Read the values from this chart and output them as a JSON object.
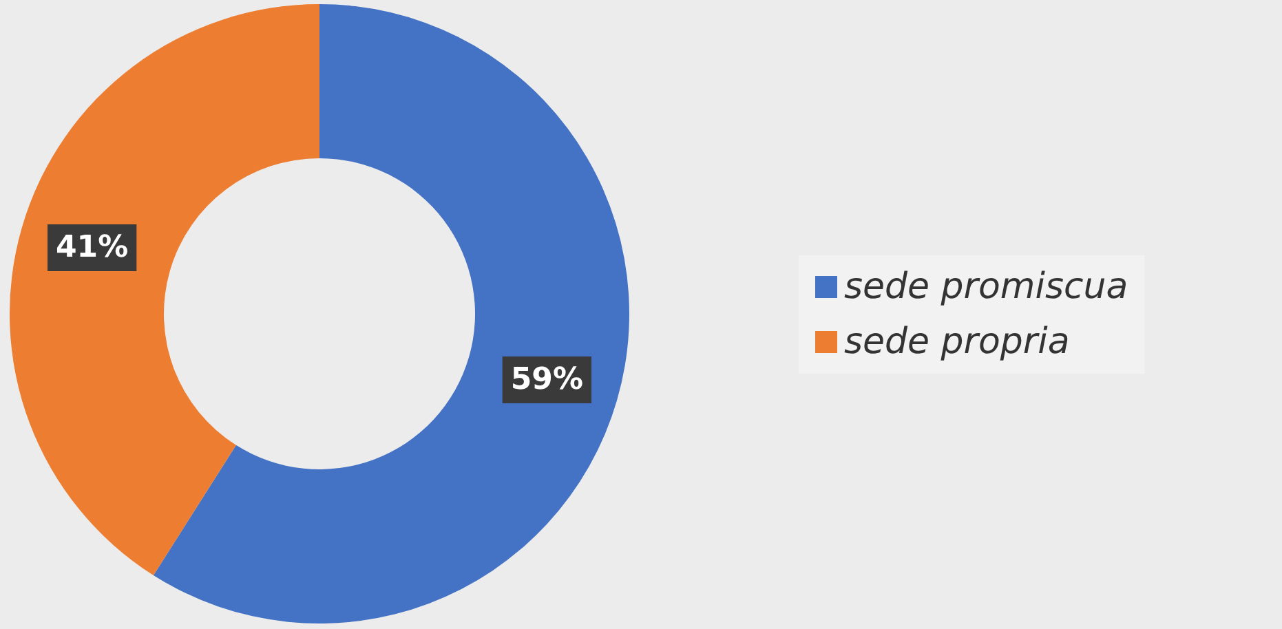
{
  "chart_data": {
    "type": "donut",
    "categories": [
      "sede promiscua",
      "sede propria"
    ],
    "values": [
      59,
      41
    ],
    "value_labels": [
      "59%",
      "41%"
    ],
    "colors": [
      "#4472c4",
      "#ed7d31"
    ],
    "legend": "right"
  }
}
